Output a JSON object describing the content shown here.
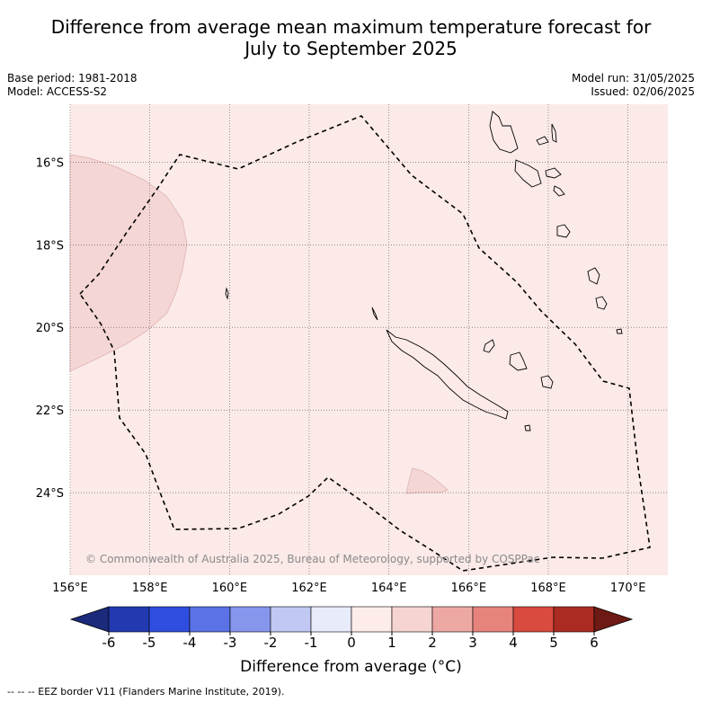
{
  "title_line1": "Difference from average mean maximum temperature forecast for",
  "title_line2": "July to September 2025",
  "base_period": "Base period: 1981-2018",
  "model": "Model: ACCESS-S2",
  "model_run": "Model run: 31/05/2025",
  "issued": "Issued: 02/06/2025",
  "copyright": "© Commonwealth of Australia 2025, Bureau of Meteorology, supported by COSPPac",
  "map": {
    "lon_range": [
      156,
      171
    ],
    "lat_range": [
      -26.0,
      -14.6
    ],
    "lon_ticks": [
      "156°E",
      "158°E",
      "160°E",
      "162°E",
      "164°E",
      "166°E",
      "168°E",
      "170°E"
    ],
    "lat_ticks": [
      "16°S",
      "18°S",
      "20°S",
      "22°S",
      "24°S"
    ],
    "lon_tick_values": [
      156,
      158,
      160,
      162,
      164,
      166,
      168,
      170
    ],
    "lat_tick_values": [
      -16,
      -18,
      -20,
      -22,
      -24
    ],
    "base_fill_color": "#fbeae8",
    "anomaly_patch_color": "#f4d6d5",
    "background_anomaly_class": "0 to 1",
    "patch_anomaly_class": "1 to 2"
  },
  "colorbar": {
    "title": "Difference from average (°C)",
    "tick_labels": [
      "-6",
      "-5",
      "-4",
      "-3",
      "-2",
      "-1",
      "0",
      "1",
      "2",
      "3",
      "4",
      "5",
      "6"
    ],
    "colors": [
      "#1b2a7a",
      "#2239b0",
      "#2f4ee0",
      "#5a72e6",
      "#8596ec",
      "#c0c8f3",
      "#e8ebf9",
      "#fdece9",
      "#f5d4d2",
      "#eda8a4",
      "#e6837d",
      "#d94a3f",
      "#ab2b22",
      "#6e1a14"
    ]
  },
  "legend_footnote": "-- -- -- EEZ border V11 (Flanders Marine Institute, 2019)."
}
